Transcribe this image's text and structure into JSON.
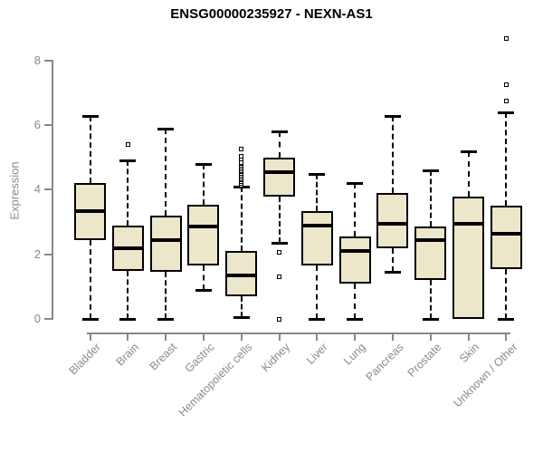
{
  "title": "ENSG00000235927 - NEXN-AS1",
  "colors": {
    "background": "#ffffff",
    "box_fill": "#ece6cb",
    "box_border": "#000000",
    "median": "#000000",
    "whisker": "#000000",
    "axis": "#888888",
    "tick_label": "#8a8a8a",
    "title": "#000000"
  },
  "chart_data": {
    "type": "boxplot",
    "title": "ENSG00000235927 - NEXN-AS1",
    "xlabel": "",
    "ylabel": "Expression",
    "ylim": [
      0,
      8
    ],
    "yticks": [
      0,
      2,
      4,
      6,
      8
    ],
    "grid": false,
    "legend": false,
    "categories": [
      "Bladder",
      "Brain",
      "Breast",
      "Gastric",
      "Hematopoietic cells",
      "Kidney",
      "Liver",
      "Lung",
      "Pancreas",
      "Prostate",
      "Skin",
      "Unknown / Other"
    ],
    "series": [
      {
        "category": "Bladder",
        "whisker_low": 0.0,
        "q1": 2.45,
        "median": 3.35,
        "q3": 4.2,
        "whisker_high": 6.3,
        "outliers": []
      },
      {
        "category": "Brain",
        "whisker_low": 0.0,
        "q1": 1.5,
        "median": 2.2,
        "q3": 2.9,
        "whisker_high": 4.9,
        "outliers": [
          5.4
        ]
      },
      {
        "category": "Breast",
        "whisker_low": 0.0,
        "q1": 1.45,
        "median": 2.45,
        "q3": 3.2,
        "whisker_high": 5.9,
        "outliers": []
      },
      {
        "category": "Gastric",
        "whisker_low": 0.9,
        "q1": 1.65,
        "median": 2.85,
        "q3": 3.55,
        "whisker_high": 4.8,
        "outliers": []
      },
      {
        "category": "Hematopoietic cells",
        "whisker_low": 0.05,
        "q1": 0.7,
        "median": 1.35,
        "q3": 2.1,
        "whisker_high": 4.1,
        "outliers": [
          4.15,
          4.2,
          4.25,
          4.3,
          4.35,
          4.4,
          4.45,
          4.5,
          4.55,
          4.6,
          4.65,
          4.7,
          4.75,
          4.8,
          4.85,
          4.95,
          5.05,
          5.25
        ]
      },
      {
        "category": "Kidney",
        "whisker_low": 2.35,
        "q1": 3.8,
        "median": 4.55,
        "q3": 5.0,
        "whisker_high": 5.8,
        "outliers": [
          2.05,
          1.3,
          0.0
        ]
      },
      {
        "category": "Liver",
        "whisker_low": 0.0,
        "q1": 1.65,
        "median": 2.9,
        "q3": 3.35,
        "whisker_high": 4.5,
        "outliers": []
      },
      {
        "category": "Lung",
        "whisker_low": 0.0,
        "q1": 1.1,
        "median": 2.1,
        "q3": 2.55,
        "whisker_high": 4.2,
        "outliers": []
      },
      {
        "category": "Pancreas",
        "whisker_low": 1.45,
        "q1": 2.2,
        "median": 2.95,
        "q3": 3.9,
        "whisker_high": 6.3,
        "outliers": []
      },
      {
        "category": "Prostate",
        "whisker_low": 0.0,
        "q1": 1.2,
        "median": 2.45,
        "q3": 2.85,
        "whisker_high": 4.6,
        "outliers": []
      },
      {
        "category": "Skin",
        "whisker_low": 0.0,
        "q1": 0.0,
        "median": 2.95,
        "q3": 3.8,
        "whisker_high": 5.2,
        "outliers": []
      },
      {
        "category": "Unknown / Other",
        "whisker_low": 0.0,
        "q1": 1.55,
        "median": 2.65,
        "q3": 3.5,
        "whisker_high": 6.4,
        "outliers": [
          6.75,
          7.25,
          8.7
        ]
      }
    ]
  }
}
